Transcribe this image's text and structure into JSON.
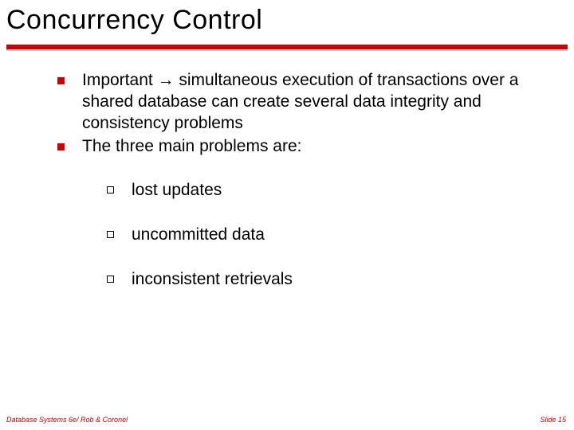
{
  "slide": {
    "title": "Concurrency Control",
    "accent_color": "#cc0000",
    "background_color": "#ffffff",
    "text_color": "#000000",
    "title_fontsize": 34,
    "body_fontsize": 21,
    "footer_fontsize": 9,
    "bullets": [
      {
        "text_pre": "Important ",
        "arrow": "→",
        "text_post": " simultaneous execution of transactions over a shared database can create several data integrity and consistency problems"
      },
      {
        "text_pre": "The three main problems are:",
        "arrow": "",
        "text_post": ""
      }
    ],
    "sub_bullets": [
      {
        "text": "lost updates"
      },
      {
        "text": "uncommitted data"
      },
      {
        "text": "inconsistent retrievals"
      }
    ],
    "footer_left": "Database Systems 6e/ Rob & Coronel",
    "footer_right": "Slide 15"
  }
}
